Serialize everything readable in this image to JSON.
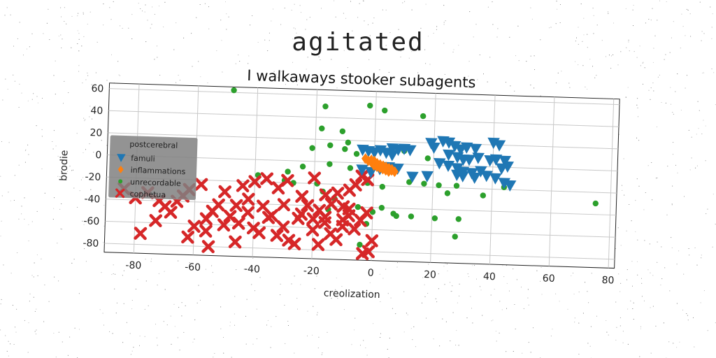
{
  "main_title": "agitated",
  "chart_data": {
    "type": "scatter",
    "title": "I walkaways stooker subagents",
    "xlabel": "creolization",
    "ylabel": "brodie",
    "xlim": [
      -90,
      82
    ],
    "ylim": [
      -88,
      65
    ],
    "x_ticks": [
      -80,
      -60,
      -40,
      -20,
      0,
      20,
      40,
      60,
      80
    ],
    "y_ticks": [
      60,
      40,
      20,
      0,
      -20,
      -40,
      -60,
      -80
    ],
    "grid": true,
    "legend": {
      "title": "postcerebral",
      "placement": "left"
    },
    "colors": {
      "famuli": "#1f77b4",
      "inflammations": "#ff7f0e",
      "unrecordable": "#2ca02c",
      "cophetua": "#d62728"
    },
    "series": [
      {
        "name": "famuli",
        "marker": "triangle-down",
        "points": [
          [
            19,
            20
          ],
          [
            20,
            16
          ],
          [
            23,
            22
          ],
          [
            25,
            21
          ],
          [
            27,
            18
          ],
          [
            29,
            15
          ],
          [
            31,
            17
          ],
          [
            34,
            16
          ],
          [
            40,
            22
          ],
          [
            42,
            20
          ],
          [
            6,
            14
          ],
          [
            8,
            13
          ],
          [
            10,
            14
          ],
          [
            12,
            13
          ],
          [
            4,
            10
          ],
          [
            6,
            8
          ],
          [
            2,
            12
          ],
          [
            0,
            10
          ],
          [
            -2,
            11
          ],
          [
            -4,
            12
          ],
          [
            25,
            10
          ],
          [
            28,
            8
          ],
          [
            30,
            6
          ],
          [
            32,
            6
          ],
          [
            35,
            8
          ],
          [
            39,
            6
          ],
          [
            41,
            7
          ],
          [
            44,
            6
          ],
          [
            45,
            1
          ],
          [
            43,
            -1
          ],
          [
            22,
            2
          ],
          [
            25,
            0
          ],
          [
            28,
            -2
          ],
          [
            30,
            -5
          ],
          [
            33,
            -6
          ],
          [
            36,
            -4
          ],
          [
            38,
            -8
          ],
          [
            41,
            -10
          ],
          [
            44,
            -14
          ],
          [
            46,
            -16
          ],
          [
            28,
            -8
          ],
          [
            30,
            -9
          ],
          [
            34,
            -10
          ],
          [
            -1,
            -8
          ],
          [
            2,
            -5
          ],
          [
            5,
            -3
          ],
          [
            8,
            -4
          ],
          [
            -4,
            -6
          ],
          [
            18,
            -10
          ],
          [
            13,
            -11
          ]
        ]
      },
      {
        "name": "inflammations",
        "marker": "diamond",
        "points": [
          [
            -2,
            2
          ],
          [
            -1,
            1
          ],
          [
            0,
            0
          ],
          [
            1,
            -1
          ],
          [
            2,
            -2
          ],
          [
            3,
            -3
          ],
          [
            4,
            -4
          ],
          [
            5,
            -5
          ],
          [
            6,
            -6
          ],
          [
            7,
            -7
          ],
          [
            -1,
            3
          ],
          [
            0,
            2
          ],
          [
            1,
            0
          ],
          [
            2,
            -1
          ],
          [
            3,
            -2
          ],
          [
            4,
            -3
          ],
          [
            5,
            -4
          ],
          [
            6,
            -5
          ],
          [
            -3,
            4
          ],
          [
            0,
            -2
          ],
          [
            1,
            -3
          ],
          [
            2,
            -4
          ],
          [
            3,
            -5
          ],
          [
            4,
            -6
          ],
          [
            5,
            -7
          ]
        ]
      },
      {
        "name": "unrecordable",
        "marker": "circle",
        "points": [
          [
            -48,
            62
          ],
          [
            -17,
            50
          ],
          [
            -2,
            52
          ],
          [
            3,
            48
          ],
          [
            16,
            44
          ],
          [
            -18,
            30
          ],
          [
            -11,
            28
          ],
          [
            -9,
            18
          ],
          [
            -15,
            15
          ],
          [
            -10,
            12
          ],
          [
            -21,
            12
          ],
          [
            10,
            12
          ],
          [
            -24,
            -5
          ],
          [
            -29,
            -10
          ],
          [
            -39,
            -14
          ],
          [
            -27,
            -20
          ],
          [
            -19,
            -20
          ],
          [
            -17,
            -27
          ],
          [
            -13,
            -33
          ],
          [
            -15,
            -43
          ],
          [
            -5,
            -40
          ],
          [
            0,
            -44
          ],
          [
            3,
            -40
          ],
          [
            7,
            -45
          ],
          [
            8,
            -47
          ],
          [
            13,
            -47
          ],
          [
            21,
            -48
          ],
          [
            29,
            -48
          ],
          [
            -2,
            -55
          ],
          [
            -4,
            -74
          ],
          [
            28,
            -64
          ],
          [
            37,
            -26
          ],
          [
            44,
            -18
          ],
          [
            22,
            -18
          ],
          [
            12,
            -16
          ],
          [
            17,
            -17
          ],
          [
            -2,
            -18
          ],
          [
            3,
            -21
          ],
          [
            28,
            -18
          ],
          [
            25,
            -25
          ],
          [
            33,
            -5
          ],
          [
            18,
            6
          ],
          [
            -8,
            -5
          ],
          [
            -6,
            8
          ],
          [
            -15,
            -2
          ],
          [
            -30,
            -18
          ],
          [
            75,
            -30
          ]
        ]
      },
      {
        "name": "cophetua",
        "marker": "x",
        "points": [
          [
            -84,
            -30
          ],
          [
            -80,
            -38
          ],
          [
            -76,
            -33
          ],
          [
            -73,
            -58
          ],
          [
            -78,
            -70
          ],
          [
            -66,
            -40
          ],
          [
            -62,
            -29
          ],
          [
            -58,
            -24
          ],
          [
            -56,
            -55
          ],
          [
            -54,
            -48
          ],
          [
            -52,
            -42
          ],
          [
            -50,
            -60
          ],
          [
            -48,
            -52
          ],
          [
            -45,
            -58
          ],
          [
            -42,
            -48
          ],
          [
            -40,
            -62
          ],
          [
            -37,
            -42
          ],
          [
            -35,
            -52
          ],
          [
            -32,
            -68
          ],
          [
            -30,
            -60
          ],
          [
            -28,
            -72
          ],
          [
            -25,
            -52
          ],
          [
            -22,
            -40
          ],
          [
            -20,
            -62
          ],
          [
            -18,
            -75
          ],
          [
            -16,
            -55
          ],
          [
            -14,
            -65
          ],
          [
            -12,
            -70
          ],
          [
            -10,
            -58
          ],
          [
            -8,
            -48
          ],
          [
            -6,
            -60
          ],
          [
            -4,
            -52
          ],
          [
            -2,
            -45
          ],
          [
            0,
            -70
          ],
          [
            -55,
            -80
          ],
          [
            -46,
            -75
          ],
          [
            -38,
            -66
          ],
          [
            -26,
            -75
          ],
          [
            -44,
            -24
          ],
          [
            -40,
            -20
          ],
          [
            -36,
            -17
          ],
          [
            -32,
            -25
          ],
          [
            -29,
            -18
          ],
          [
            -60,
            -62
          ],
          [
            -64,
            -35
          ],
          [
            -70,
            -45
          ],
          [
            -24,
            -48
          ],
          [
            -20,
            -52
          ],
          [
            -16,
            -30
          ],
          [
            -12,
            -28
          ],
          [
            -8,
            -25
          ],
          [
            -6,
            -20
          ],
          [
            -4,
            -12
          ],
          [
            -2,
            -15
          ],
          [
            -18,
            -44
          ],
          [
            -14,
            -38
          ],
          [
            -20,
            -15
          ],
          [
            -10,
            -40
          ],
          [
            -30,
            -40
          ],
          [
            -50,
            -30
          ],
          [
            -46,
            -42
          ],
          [
            -42,
            -36
          ],
          [
            -3,
            -82
          ],
          [
            -1,
            -80
          ],
          [
            -56,
            -66
          ],
          [
            -62,
            -72
          ],
          [
            -68,
            -50
          ],
          [
            -72,
            -40
          ],
          [
            -34,
            -50
          ],
          [
            -24,
            -32
          ],
          [
            -16,
            -50
          ],
          [
            -10,
            -52
          ],
          [
            -8,
            -42
          ]
        ]
      }
    ]
  }
}
